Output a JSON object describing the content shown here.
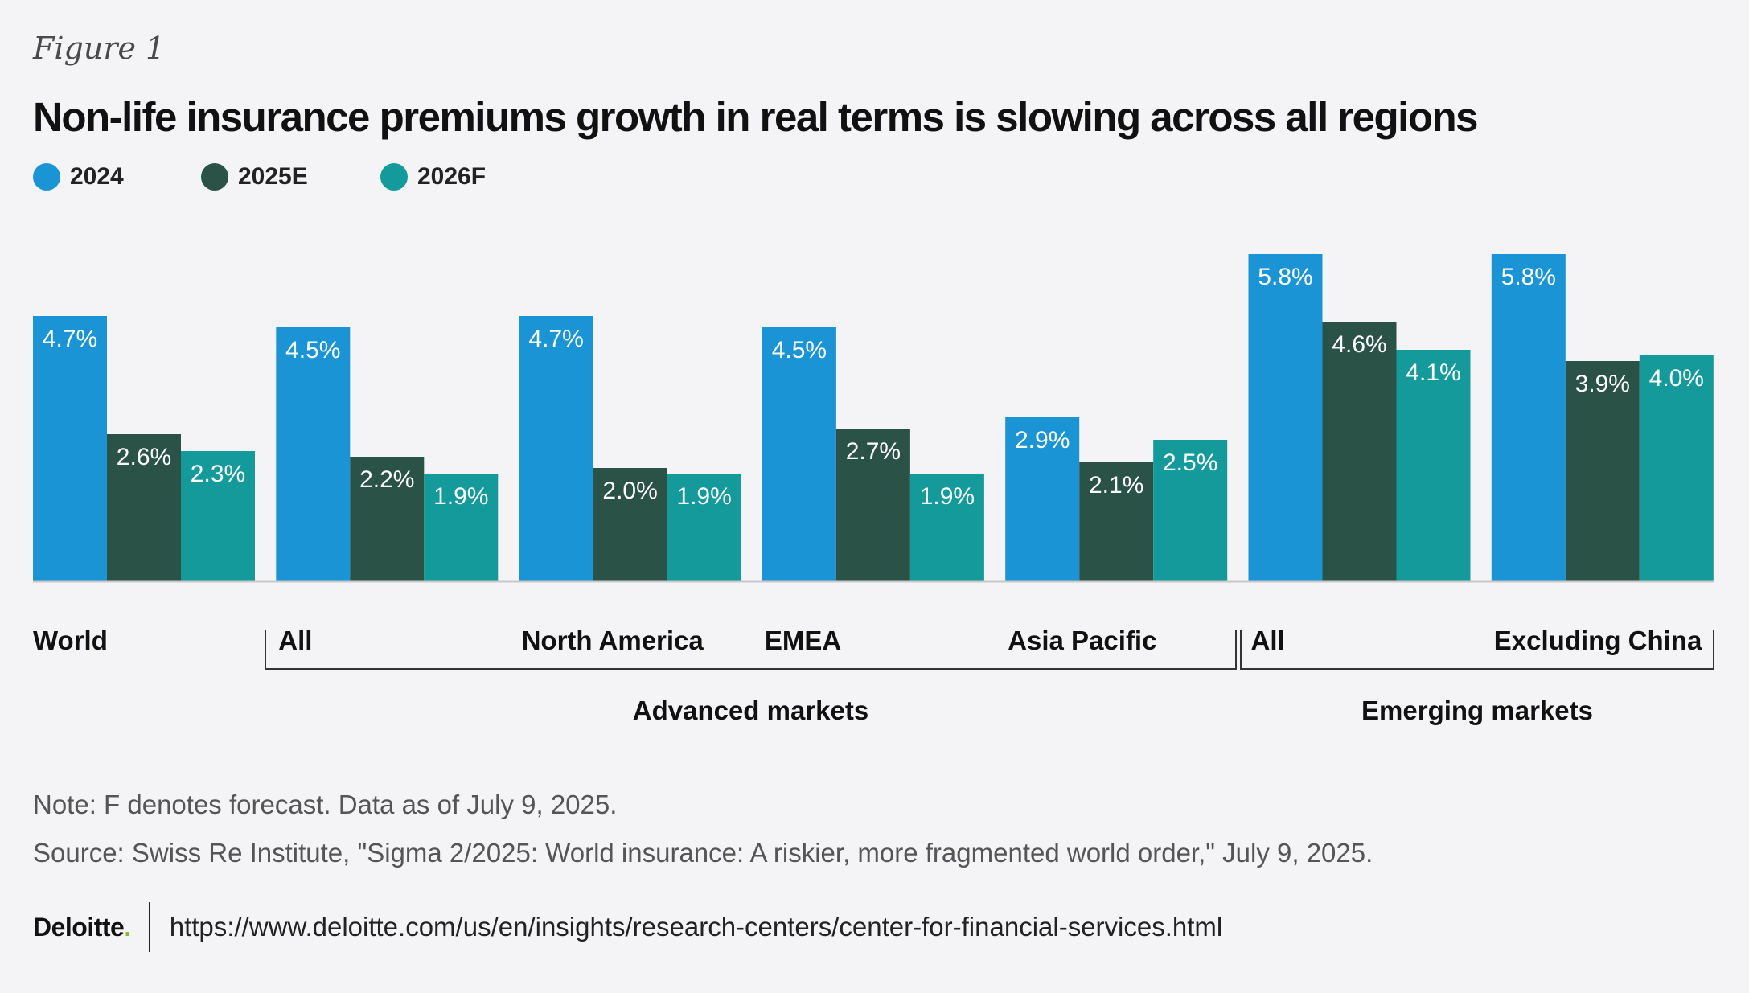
{
  "figure_label": "Figure 1",
  "colors": {
    "s2024": "#1a94d4",
    "s2025": "#2b5247",
    "s2026": "#159a9b",
    "axis": "#c8c8c8",
    "bracket": "#333333"
  },
  "chart_data": {
    "type": "bar",
    "title": "Non-life insurance premiums growth in real terms is slowing across all regions",
    "categories": [
      "World",
      "All",
      "North America",
      "EMEA",
      "Asia Pacific",
      "All",
      "Excluding China"
    ],
    "series": [
      {
        "name": "2024",
        "values": [
          4.7,
          4.5,
          4.7,
          4.5,
          2.9,
          5.8,
          5.8
        ],
        "labels": [
          "4.7%",
          "4.5%",
          "4.7%",
          "4.5%",
          "2.9%",
          "5.8%",
          "5.8%"
        ]
      },
      {
        "name": "2025E",
        "values": [
          2.6,
          2.2,
          2.0,
          2.7,
          2.1,
          4.6,
          3.9
        ],
        "labels": [
          "2.6%",
          "2.2%",
          "2.0%",
          "2.7%",
          "2.1%",
          "4.6%",
          "3.9%"
        ]
      },
      {
        "name": "2026F",
        "values": [
          2.3,
          1.9,
          1.9,
          1.9,
          2.5,
          4.1,
          4.0
        ],
        "labels": [
          "2.3%",
          "1.9%",
          "1.9%",
          "1.9%",
          "2.5%",
          "4.1%",
          "4.0%"
        ]
      }
    ],
    "groups": [
      {
        "name": "Advanced markets",
        "from": 1,
        "to": 4
      },
      {
        "name": "Emerging markets",
        "from": 5,
        "to": 6
      }
    ],
    "ylim": [
      0,
      5.8
    ],
    "xlabel": "",
    "ylabel": "",
    "legend_position": "top-left",
    "grid": false
  },
  "note": "Note: F denotes forecast. Data as of July 9, 2025.",
  "source": "Source: Swiss Re Institute, \"Sigma 2/2025: World insurance: A riskier, more fragmented world order,\" July 9, 2025.",
  "footer": {
    "logo_text": "Deloitte",
    "logo_dot": ".",
    "url": "https://www.deloitte.com/us/en/insights/research-centers/center-for-financial-services.html"
  }
}
